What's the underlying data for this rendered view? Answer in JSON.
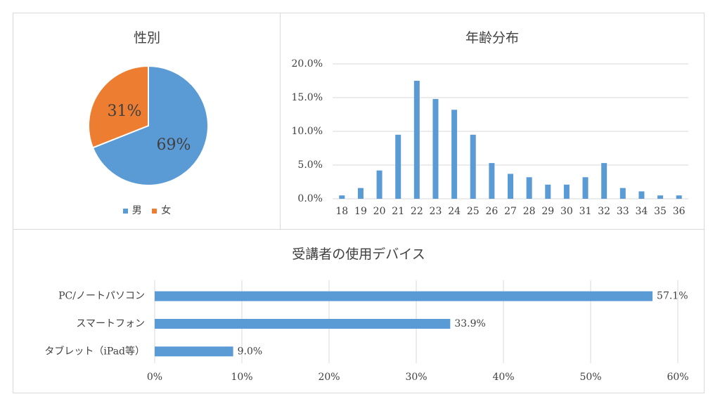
{
  "colors": {
    "male": "#5b9bd5",
    "female": "#ed7d31",
    "bar": "#5b9bd5",
    "grid": "#d9d9d9",
    "text": "#404040"
  },
  "chart_data": [
    {
      "type": "pie",
      "title": "性別",
      "categories": [
        "男",
        "女"
      ],
      "values": [
        69,
        31
      ],
      "value_labels": [
        "69%",
        "31%"
      ],
      "legend": "bottom"
    },
    {
      "type": "bar",
      "title": "年齢分布",
      "categories": [
        "18",
        "19",
        "20",
        "21",
        "22",
        "23",
        "24",
        "25",
        "26",
        "27",
        "28",
        "29",
        "30",
        "31",
        "32",
        "33",
        "34",
        "35",
        "36"
      ],
      "values": [
        0.5,
        1.6,
        4.2,
        9.5,
        17.5,
        14.8,
        13.2,
        9.5,
        5.3,
        3.7,
        3.2,
        2.1,
        2.1,
        3.2,
        5.3,
        1.6,
        1.1,
        0.5,
        0.5
      ],
      "yticks": [
        "0.0%",
        "5.0%",
        "10.0%",
        "15.0%",
        "20.0%"
      ],
      "ylim": [
        0,
        20
      ],
      "grid": true
    },
    {
      "type": "bar",
      "orientation": "horizontal",
      "title": "受講者の使用デバイス",
      "categories": [
        "PC/ノートパソコン",
        "スマートフォン",
        "タブレット（iPad等）"
      ],
      "values": [
        57.1,
        33.9,
        9.0
      ],
      "value_labels": [
        "57.1%",
        "33.9%",
        "9.0%"
      ],
      "xticks": [
        "0%",
        "10%",
        "20%",
        "30%",
        "40%",
        "50%",
        "60%"
      ],
      "xlim": [
        0,
        60
      ],
      "grid": true
    }
  ]
}
